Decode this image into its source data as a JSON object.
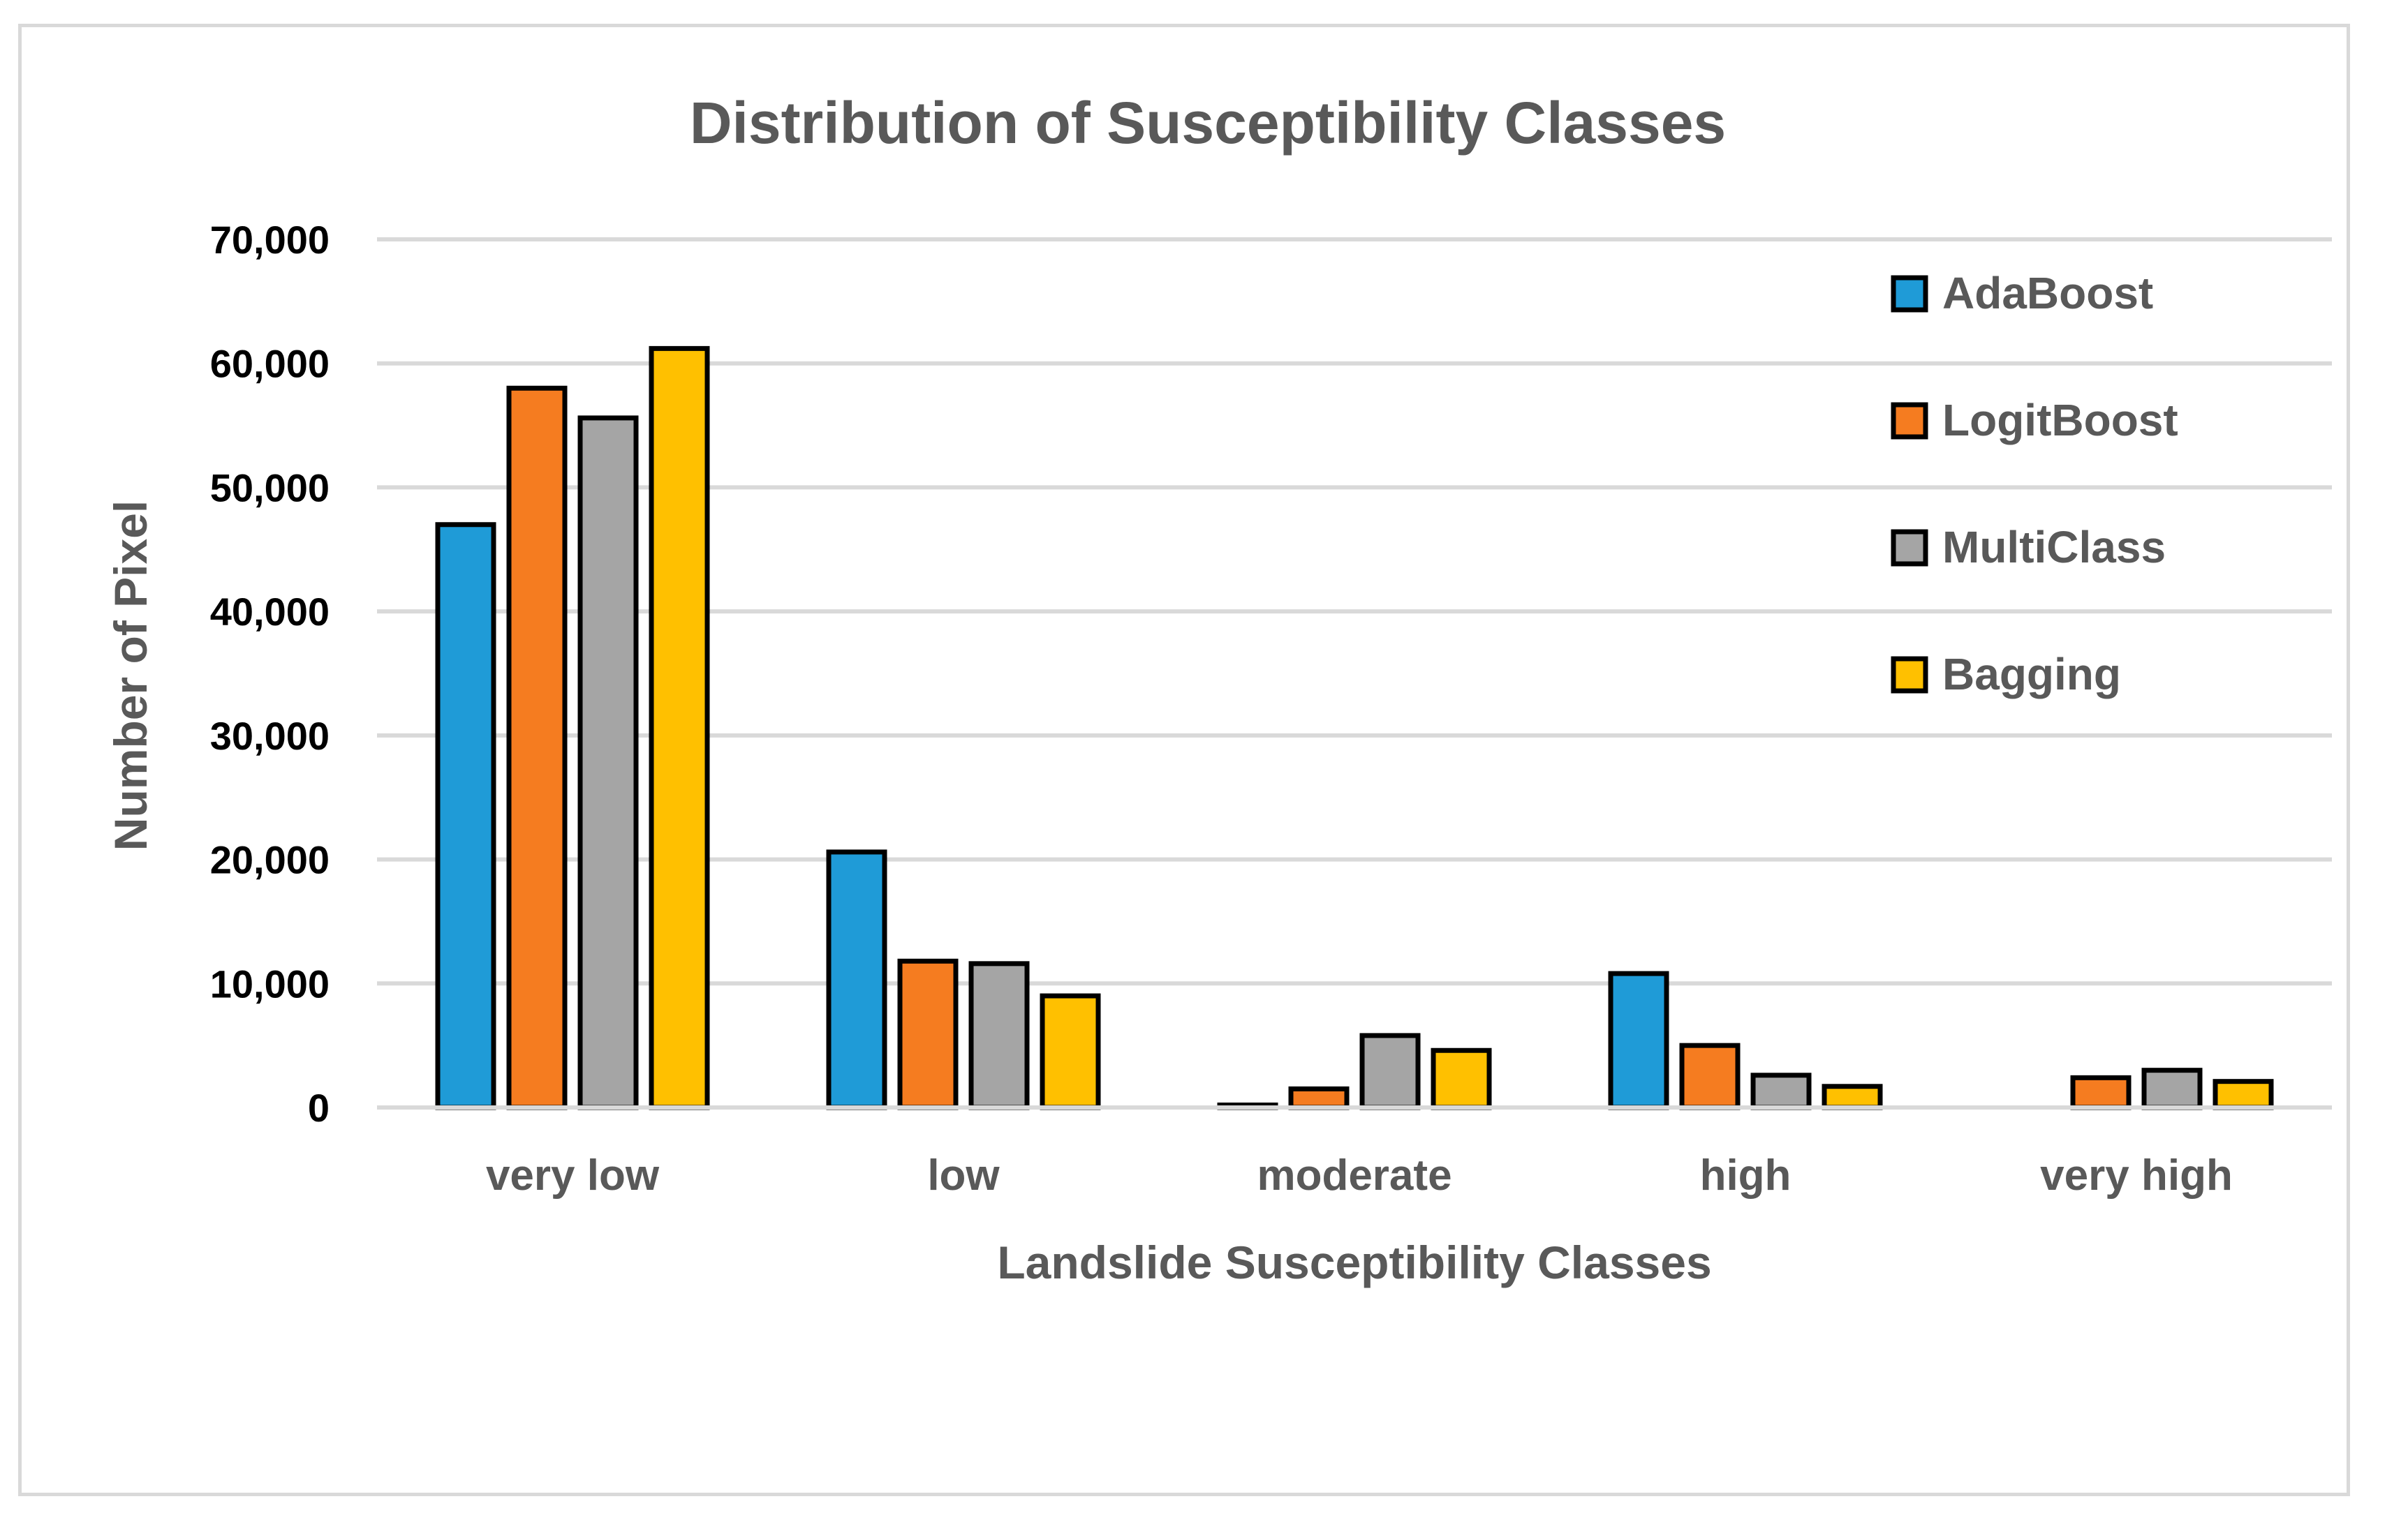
{
  "chart_data": {
    "type": "bar",
    "title": "Distribution of Susceptibility Classes",
    "xlabel": "Landslide Susceptibility Classes",
    "ylabel": "Number of Pixel",
    "ylim": [
      0,
      70000
    ],
    "yticks": [
      0,
      10000,
      20000,
      30000,
      40000,
      50000,
      60000,
      70000
    ],
    "ytick_labels": [
      "0",
      "10,000",
      "20,000",
      "30,000",
      "40,000",
      "50,000",
      "60,000",
      "70,000"
    ],
    "grid": true,
    "legend_position": "top-right",
    "categories": [
      "very low",
      "low",
      "moderate",
      "high",
      "very high"
    ],
    "series": [
      {
        "name": "AdaBoost",
        "color": "#1F9BD7",
        "values": [
          47000,
          20600,
          200,
          10800,
          0
        ]
      },
      {
        "name": "LogitBoost",
        "color": "#F57C20",
        "values": [
          58000,
          11800,
          1500,
          5000,
          2400
        ]
      },
      {
        "name": "MultiClass",
        "color": "#A5A5A5",
        "values": [
          55600,
          11600,
          5800,
          2600,
          3000
        ]
      },
      {
        "name": "Bagging",
        "color": "#FFC000",
        "values": [
          61200,
          9000,
          4600,
          1700,
          2100
        ]
      }
    ]
  }
}
